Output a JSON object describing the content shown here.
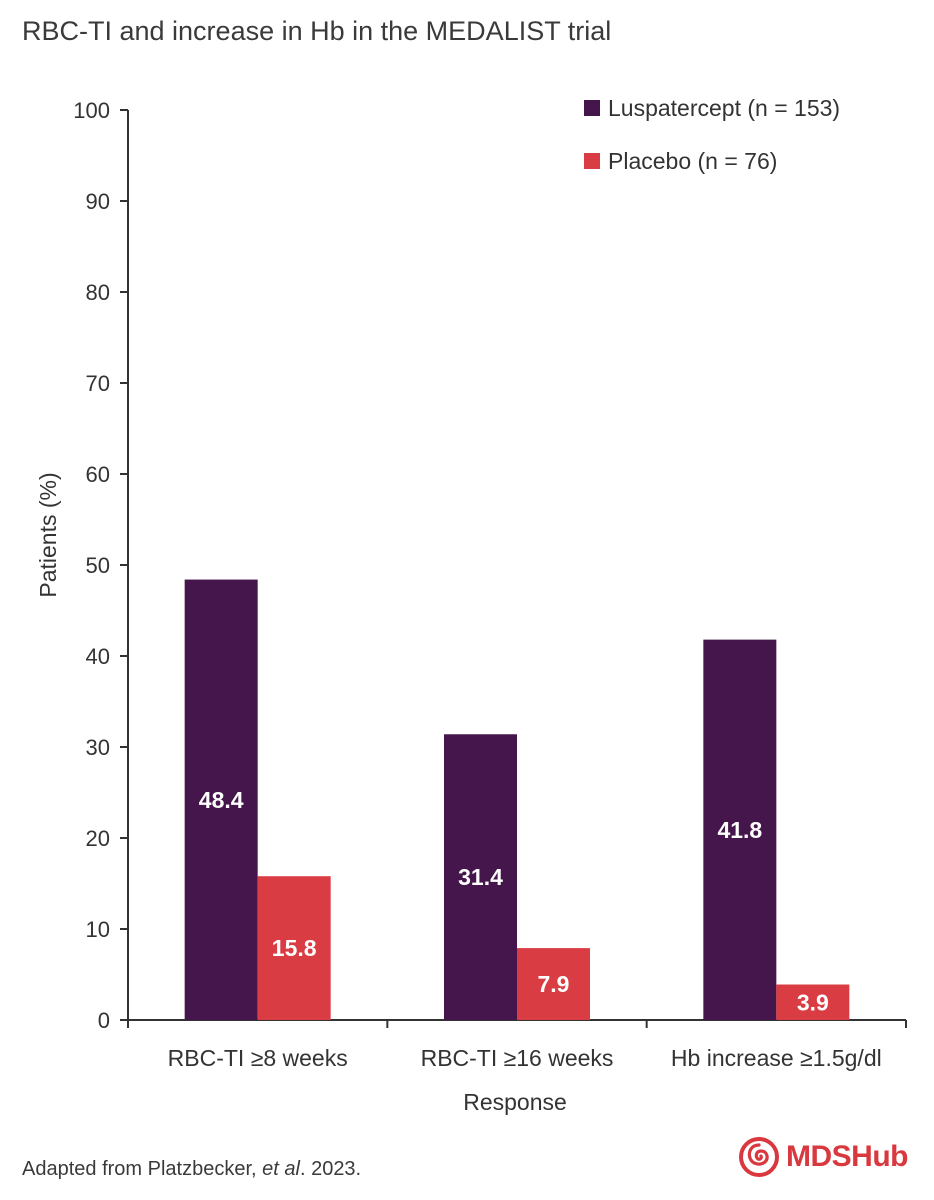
{
  "chart_data": {
    "type": "bar",
    "title": "RBC-TI and increase in Hb in the MEDALIST trial",
    "xlabel": "Response",
    "ylabel": "Patients (%)",
    "ylim": [
      0,
      100
    ],
    "yticks": [
      0,
      10,
      20,
      30,
      40,
      50,
      60,
      70,
      80,
      90,
      100
    ],
    "categories": [
      "RBC-TI ≥8 weeks",
      "RBC-TI ≥16 weeks",
      "Hb increase ≥1.5g/dl"
    ],
    "series": [
      {
        "name": "Luspatercept (n = 153)",
        "color": "#45164b",
        "values": [
          48.4,
          31.4,
          41.8
        ],
        "labels": [
          "48.4",
          "31.4",
          "41.8"
        ]
      },
      {
        "name": "Placebo (n = 76)",
        "color": "#d93c43",
        "values": [
          15.8,
          7.9,
          3.9
        ],
        "labels": [
          "15.8",
          "7.9",
          "3.9"
        ]
      }
    ],
    "legend_position": "top-right",
    "grid": false
  },
  "footer": {
    "source_prefix": "Adapted from Platzbecker, ",
    "source_italic": "et al",
    "source_suffix": ". 2023."
  },
  "brand": {
    "name_part1": "MDS",
    "name_part2": "Hub",
    "color": "#d9383e"
  }
}
